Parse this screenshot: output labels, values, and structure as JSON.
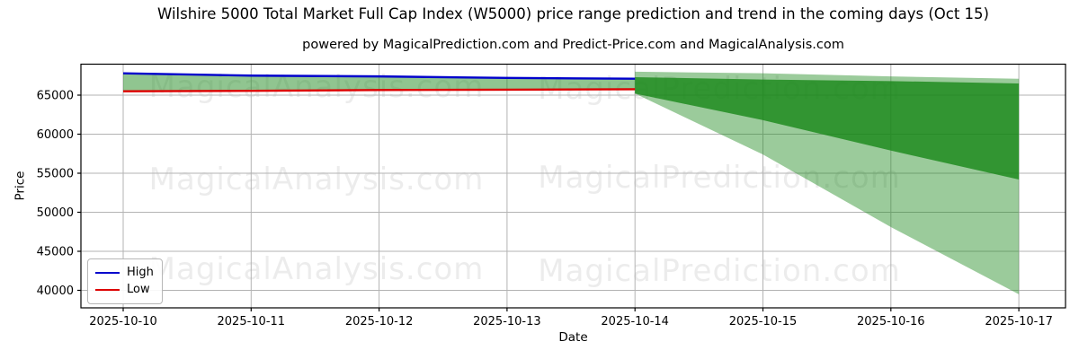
{
  "title": "Wilshire 5000 Total Market Full Cap Index (W5000) price range prediction and trend in the coming days (Oct 15)",
  "subtitle": "powered by MagicalPrediction.com and Predict-Price.com and MagicalAnalysis.com",
  "watermarks": {
    "left_text": "MagicalAnalysis.com",
    "right_text": "MagicalPrediction.com"
  },
  "axes": {
    "x_label": "Date",
    "y_label": "Price",
    "x_ticks": [
      "2025-10-10",
      "2025-10-11",
      "2025-10-12",
      "2025-10-13",
      "2025-10-14",
      "2025-10-15",
      "2025-10-16",
      "2025-10-17"
    ],
    "y_ticks": [
      40000,
      45000,
      50000,
      55000,
      60000,
      65000
    ],
    "ylim": [
      37750,
      68950
    ],
    "grid": true
  },
  "legend": {
    "position": "lower-left",
    "items": [
      {
        "label": "High",
        "color": "#0000cc"
      },
      {
        "label": "Low",
        "color": "#dd0000"
      }
    ]
  },
  "colors": {
    "high_line": "#0000cc",
    "low_line": "#dd0000",
    "history_band": "rgba(34,139,34,0.50)",
    "prediction_wide_band": "rgba(34,139,34,0.45)",
    "prediction_narrow_band": "rgba(24,135,24,0.80)",
    "gridline": "#b3b3b3",
    "spine": "#000000"
  },
  "chart_data": {
    "type": "line",
    "title": "Wilshire 5000 Total Market Full Cap Index (W5000) price range prediction and trend in the coming days (Oct 15)",
    "xlabel": "Date",
    "ylabel": "Price",
    "x": [
      "2025-10-10",
      "2025-10-11",
      "2025-10-12",
      "2025-10-13",
      "2025-10-14",
      "2025-10-15",
      "2025-10-16",
      "2025-10-17"
    ],
    "ylim": [
      37750,
      68950
    ],
    "series": [
      {
        "name": "High",
        "x": [
          "2025-10-10",
          "2025-10-11",
          "2025-10-12",
          "2025-10-13",
          "2025-10-14"
        ],
        "values": [
          67800,
          67500,
          67400,
          67200,
          67100
        ]
      },
      {
        "name": "Low",
        "x": [
          "2025-10-10",
          "2025-10-11",
          "2025-10-12",
          "2025-10-13",
          "2025-10-14"
        ],
        "values": [
          65500,
          65550,
          65650,
          65700,
          65750
        ]
      }
    ],
    "bands": [
      {
        "name": "history-range",
        "x": [
          "2025-10-10",
          "2025-10-11",
          "2025-10-12",
          "2025-10-13",
          "2025-10-14"
        ],
        "upper": [
          67800,
          67500,
          67400,
          67200,
          67100
        ],
        "lower": [
          65500,
          65550,
          65650,
          65700,
          65750
        ],
        "fill_key": "history_band"
      },
      {
        "name": "prediction-wide-range",
        "x": [
          "2025-10-14",
          "2025-10-15",
          "2025-10-16",
          "2025-10-17"
        ],
        "upper": [
          68000,
          67800,
          67400,
          67100
        ],
        "lower": [
          65200,
          57400,
          48100,
          39500
        ],
        "fill_key": "prediction_wide_band"
      },
      {
        "name": "prediction-narrow-range",
        "x": [
          "2025-10-14",
          "2025-10-15",
          "2025-10-16",
          "2025-10-17"
        ],
        "upper": [
          67300,
          67000,
          66800,
          66500
        ],
        "lower": [
          65200,
          61800,
          57900,
          54200
        ],
        "fill_key": "prediction_narrow_band"
      }
    ]
  }
}
